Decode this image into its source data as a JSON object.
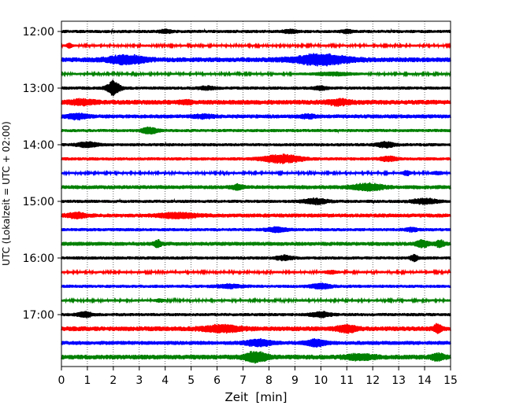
{
  "chart_data": {
    "type": "line",
    "title": "",
    "xlabel": "Zeit  [min]",
    "ylabel": "UTC (Lokalzeit = UTC + 02:00)",
    "xlim": [
      0,
      15
    ],
    "x_ticks": [
      "0",
      "1",
      "2",
      "3",
      "4",
      "5",
      "6",
      "7",
      "8",
      "9",
      "10",
      "11",
      "12",
      "13",
      "14",
      "15"
    ],
    "x_grid": "dotted vertical lines at each minute",
    "y_order": "top to bottom, one trace per 15 minutes",
    "y_tick_labels": [
      "12:00",
      "13:00",
      "14:00",
      "15:00",
      "16:00",
      "17:00"
    ],
    "y_tick_rows": [
      0,
      4,
      8,
      12,
      16,
      20
    ],
    "color_cycle": [
      "#000000",
      "#ff0000",
      "#0000ff",
      "#008000"
    ],
    "rows": [
      {
        "start": "12:00",
        "color": "#000000",
        "amp": 2,
        "bursts": [
          [
            4.0,
            0.5,
            2
          ],
          [
            8.8,
            0.6,
            2
          ],
          [
            11.0,
            0.4,
            2
          ]
        ]
      },
      {
        "start": "12:15",
        "color": "#ff0000",
        "amp": 1.5,
        "bursts": [
          [
            0.3,
            0.2,
            3
          ]
        ]
      },
      {
        "start": "12:30",
        "color": "#0000ff",
        "amp": 3,
        "bursts": [
          [
            2.5,
            1.5,
            5
          ],
          [
            10.0,
            2.2,
            6
          ]
        ]
      },
      {
        "start": "12:45",
        "color": "#008000",
        "amp": 1.5,
        "bursts": [
          [
            10.5,
            1.5,
            2
          ]
        ]
      },
      {
        "start": "13:00",
        "color": "#000000",
        "amp": 2,
        "bursts": [
          [
            2.0,
            0.5,
            9
          ],
          [
            5.6,
            0.6,
            2
          ],
          [
            10.0,
            0.5,
            2
          ]
        ]
      },
      {
        "start": "13:15",
        "color": "#ff0000",
        "amp": 3,
        "bursts": [
          [
            0.8,
            0.9,
            3
          ],
          [
            4.8,
            0.5,
            2
          ],
          [
            10.7,
            1.0,
            3
          ]
        ]
      },
      {
        "start": "13:30",
        "color": "#0000ff",
        "amp": 2.5,
        "bursts": [
          [
            0.6,
            0.8,
            3
          ],
          [
            5.5,
            0.8,
            2
          ],
          [
            9.5,
            0.6,
            2
          ]
        ]
      },
      {
        "start": "13:45",
        "color": "#008000",
        "amp": 2,
        "bursts": [
          [
            3.4,
            0.6,
            4
          ]
        ]
      },
      {
        "start": "14:00",
        "color": "#000000",
        "amp": 2,
        "bursts": [
          [
            1.0,
            0.8,
            3
          ],
          [
            12.5,
            0.7,
            3
          ]
        ]
      },
      {
        "start": "14:15",
        "color": "#ff0000",
        "amp": 2,
        "bursts": [
          [
            8.5,
            1.5,
            5
          ],
          [
            12.6,
            0.6,
            3
          ]
        ]
      },
      {
        "start": "14:30",
        "color": "#0000ff",
        "amp": 1.5,
        "bursts": [
          [
            13.3,
            0.3,
            3
          ],
          [
            14.5,
            0.4,
            2
          ]
        ]
      },
      {
        "start": "14:45",
        "color": "#008000",
        "amp": 2.5,
        "bursts": [
          [
            6.8,
            0.4,
            3
          ],
          [
            11.8,
            1.2,
            4
          ]
        ]
      },
      {
        "start": "15:00",
        "color": "#000000",
        "amp": 2,
        "bursts": [
          [
            9.8,
            1.0,
            3
          ],
          [
            14.0,
            1.0,
            3
          ]
        ]
      },
      {
        "start": "15:15",
        "color": "#ff0000",
        "amp": 2.5,
        "bursts": [
          [
            0.6,
            0.8,
            3
          ],
          [
            4.5,
            1.5,
            3
          ]
        ]
      },
      {
        "start": "15:30",
        "color": "#0000ff",
        "amp": 2,
        "bursts": [
          [
            8.3,
            0.8,
            3
          ],
          [
            13.5,
            0.5,
            2
          ]
        ]
      },
      {
        "start": "15:45",
        "color": "#008000",
        "amp": 2.5,
        "bursts": [
          [
            3.7,
            0.3,
            4
          ],
          [
            13.9,
            0.5,
            4
          ],
          [
            14.6,
            0.3,
            4
          ]
        ]
      },
      {
        "start": "16:00",
        "color": "#000000",
        "amp": 2,
        "bursts": [
          [
            8.6,
            0.6,
            3
          ],
          [
            13.6,
            0.3,
            4
          ]
        ]
      },
      {
        "start": "16:15",
        "color": "#ff0000",
        "amp": 1.5,
        "bursts": [
          [
            10.4,
            0.5,
            2
          ]
        ]
      },
      {
        "start": "16:30",
        "color": "#0000ff",
        "amp": 2,
        "bursts": [
          [
            6.5,
            1.0,
            2
          ],
          [
            10.0,
            0.8,
            3
          ]
        ]
      },
      {
        "start": "16:45",
        "color": "#008000",
        "amp": 1.5,
        "bursts": [
          [
            3.8,
            0.3,
            2
          ]
        ]
      },
      {
        "start": "17:00",
        "color": "#000000",
        "amp": 2,
        "bursts": [
          [
            0.9,
            0.6,
            3
          ],
          [
            10.0,
            0.8,
            3
          ]
        ]
      },
      {
        "start": "17:15",
        "color": "#ff0000",
        "amp": 3,
        "bursts": [
          [
            6.2,
            1.5,
            4
          ],
          [
            11.0,
            0.8,
            4
          ],
          [
            14.5,
            0.3,
            5
          ]
        ]
      },
      {
        "start": "17:30",
        "color": "#0000ff",
        "amp": 2.5,
        "bursts": [
          [
            7.6,
            1.0,
            4
          ],
          [
            9.8,
            0.8,
            4
          ]
        ]
      },
      {
        "start": "17:45",
        "color": "#008000",
        "amp": 3,
        "bursts": [
          [
            7.5,
            0.9,
            6
          ],
          [
            11.5,
            1.2,
            3
          ],
          [
            14.5,
            0.5,
            4
          ]
        ]
      }
    ]
  }
}
